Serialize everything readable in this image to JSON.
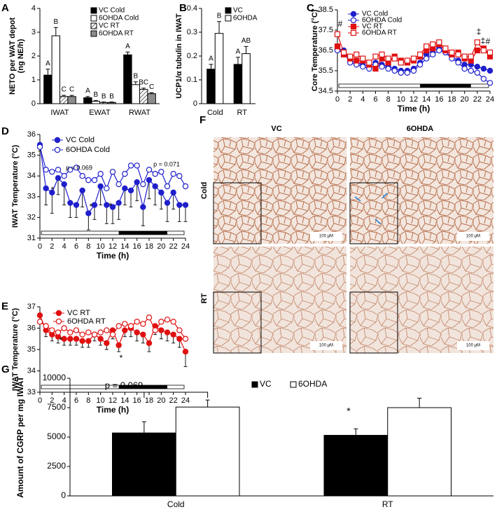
{
  "panel_labels": [
    "A",
    "B",
    "C",
    "D",
    "E",
    "F",
    "G"
  ],
  "chart_data": [
    {
      "type": "bar",
      "y_label": [
        "NETO per WAT depot",
        "(ng NE/h)"
      ],
      "categories": [
        "IWAT",
        "EWAT",
        "RWAT"
      ],
      "ylim": [
        0,
        4
      ],
      "yticks": [
        0,
        1,
        2,
        3,
        4
      ],
      "series": [
        {
          "name": "VC Cold",
          "color": "#000000",
          "values": [
            1.2,
            0.25,
            2.05
          ],
          "errors": [
            0.25,
            0.05,
            0.12
          ],
          "letters": [
            "A",
            "A",
            "A"
          ]
        },
        {
          "name": "6OHDA Cold",
          "color": "#ffffff",
          "values": [
            2.85,
            0.1,
            0.8
          ],
          "errors": [
            0.35,
            0.03,
            0.12
          ],
          "letters": [
            "B",
            "B",
            "B"
          ]
        },
        {
          "name": "VC RT",
          "color": "#ffffff",
          "pattern": "hatch",
          "values": [
            0.3,
            0.05,
            0.6
          ],
          "errors": [
            0.05,
            0.02,
            0.05
          ],
          "letters": [
            "C",
            "B",
            "BC"
          ]
        },
        {
          "name": "6OHDA RT",
          "color": "#8c8c8c",
          "values": [
            0.3,
            0.05,
            0.42
          ],
          "errors": [
            0.05,
            0.02,
            0.04
          ],
          "letters": [
            "C",
            "B",
            "C"
          ]
        }
      ]
    },
    {
      "type": "bar",
      "y_label": [
        "UCP1/α tubulin in IWAT"
      ],
      "categories": [
        "Cold",
        "RT"
      ],
      "ylim": [
        0,
        0.4
      ],
      "yticks": [
        0,
        0.1,
        0.2,
        0.3,
        0.4
      ],
      "series": [
        {
          "name": "VC",
          "color": "#000000",
          "values": [
            0.145,
            0.165
          ],
          "errors": [
            0.02,
            0.03
          ],
          "letters": [
            "A",
            "A"
          ]
        },
        {
          "name": "6OHDA",
          "color": "#ffffff",
          "values": [
            0.295,
            0.21
          ],
          "errors": [
            0.05,
            0.03
          ],
          "letters": [
            "B",
            "AB"
          ]
        }
      ]
    },
    {
      "type": "line",
      "y_label": [
        "Core Temperature (°C)"
      ],
      "x_label": "Time (h)",
      "x": [
        0,
        1,
        2,
        3,
        4,
        5,
        6,
        7,
        8,
        9,
        10,
        11,
        12,
        13,
        14,
        15,
        16,
        17,
        18,
        19,
        20,
        21,
        22,
        23,
        24
      ],
      "xlim": [
        0,
        24
      ],
      "xticks": [
        0,
        2,
        4,
        6,
        8,
        10,
        12,
        14,
        16,
        18,
        20,
        22,
        24
      ],
      "ylim": [
        34.5,
        38.5
      ],
      "yticks": [
        34.5,
        35.5,
        36.5,
        37.5,
        38.5
      ],
      "dark_phase": [
        13,
        21
      ],
      "annotations": [
        "#",
        "‡",
        "‡",
        "#"
      ],
      "series": [
        {
          "name": "VC Cold",
          "color": "#1f1fcc",
          "marker": "circle",
          "filled": true,
          "values": [
            36.6,
            36.5,
            36.0,
            35.9,
            35.8,
            35.7,
            35.9,
            35.8,
            35.7,
            35.6,
            35.5,
            35.5,
            35.6,
            35.9,
            36.3,
            36.5,
            36.6,
            36.4,
            36.2,
            36.0,
            35.8,
            35.8,
            35.7,
            35.6,
            35.5
          ]
        },
        {
          "name": "6OHDA Cold",
          "color": "#1f1fcc",
          "marker": "circle",
          "filled": false,
          "values": [
            36.5,
            36.4,
            35.9,
            35.8,
            35.7,
            35.6,
            35.8,
            35.7,
            35.6,
            35.5,
            35.4,
            35.4,
            35.5,
            35.8,
            36.1,
            36.3,
            36.5,
            36.4,
            36.1,
            35.9,
            35.6,
            35.5,
            35.4,
            35.1,
            34.9
          ]
        },
        {
          "name": "VC RT",
          "color": "#e01010",
          "marker": "square",
          "filled": true,
          "values": [
            36.7,
            36.3,
            36.1,
            36.0,
            36.0,
            35.8,
            35.6,
            36.1,
            35.9,
            36.2,
            36.0,
            35.9,
            36.0,
            36.2,
            36.5,
            36.6,
            36.8,
            36.5,
            36.3,
            36.4,
            36.1,
            36.0,
            36.5,
            36.6,
            36.2
          ]
        },
        {
          "name": "6OHDA RT",
          "color": "#e01010",
          "marker": "square",
          "filled": false,
          "values": [
            37.3,
            36.4,
            36.2,
            36.3,
            36.1,
            35.9,
            36.2,
            36.3,
            36.1,
            36.1,
            35.9,
            36.0,
            36.1,
            36.3,
            36.7,
            36.8,
            36.9,
            36.6,
            36.4,
            36.3,
            36.2,
            36.2,
            36.9,
            36.5,
            36.4
          ]
        }
      ]
    },
    {
      "type": "line",
      "y_label": [
        "IWAT Temperature (°C)"
      ],
      "x_label": "Time (h)",
      "x": [
        0,
        1,
        2,
        3,
        4,
        5,
        6,
        7,
        8,
        9,
        10,
        11,
        12,
        13,
        14,
        15,
        16,
        17,
        18,
        19,
        20,
        21,
        22,
        23,
        24
      ],
      "xlim": [
        0,
        24
      ],
      "xticks": [
        0,
        2,
        4,
        6,
        8,
        10,
        12,
        14,
        16,
        18,
        20,
        22,
        24
      ],
      "ylim": [
        31,
        36
      ],
      "yticks": [
        31,
        32,
        33,
        34,
        35,
        36
      ],
      "dark_phase": [
        13,
        21
      ],
      "annotations": [
        "p = 0.069",
        "p = 0.071",
        "*",
        "*",
        "*"
      ],
      "series": [
        {
          "name": "VC Cold",
          "color": "#1f1fcc",
          "marker": "circle",
          "filled": true,
          "values": [
            35.5,
            33.4,
            33.2,
            33.9,
            33.6,
            32.7,
            32.6,
            33.3,
            32.2,
            32.6,
            33.5,
            32.6,
            32.5,
            32.7,
            33.4,
            33.3,
            33.7,
            32.5,
            33.8,
            33.5,
            33.2,
            32.7,
            33.2,
            32.6,
            32.6
          ],
          "errors": [
            0.3,
            0.8,
            1.0,
            0.8,
            1.0,
            0.7,
            0.6,
            0.8,
            0.8,
            0.7,
            0.9,
            0.9,
            0.8,
            0.8,
            0.8,
            0.8,
            0.9,
            0.9,
            0.9,
            0.9,
            0.8,
            0.9,
            0.8,
            0.8,
            0.8
          ]
        },
        {
          "name": "6OHDA Cold",
          "color": "#1f1fcc",
          "marker": "circle",
          "filled": false,
          "values": [
            35.4,
            34.3,
            34.2,
            34.3,
            34.0,
            34.3,
            34.4,
            34.0,
            33.8,
            33.8,
            34.1,
            33.4,
            34.2,
            33.6,
            34.1,
            34.5,
            34.5,
            33.6,
            34.3,
            34.1,
            34.2,
            33.5,
            34.1,
            34.0,
            33.5
          ]
        }
      ]
    },
    {
      "type": "line",
      "y_label": [
        "IWAT Temperature (°C)"
      ],
      "x_label": "Time (h)",
      "x": [
        0,
        1,
        2,
        3,
        4,
        5,
        6,
        7,
        8,
        9,
        10,
        11,
        12,
        13,
        14,
        15,
        16,
        17,
        18,
        19,
        20,
        21,
        22,
        23,
        24
      ],
      "xlim": [
        0,
        24
      ],
      "xticks": [
        0,
        2,
        4,
        6,
        8,
        10,
        12,
        14,
        16,
        18,
        20,
        22,
        24
      ],
      "ylim": [
        33,
        37
      ],
      "yticks": [
        33,
        34,
        35,
        36,
        37
      ],
      "dark_phase": [
        13,
        21
      ],
      "annotations": [
        "*",
        "*"
      ],
      "series": [
        {
          "name": "VC RT",
          "color": "#e01010",
          "marker": "circle",
          "filled": true,
          "values": [
            36.6,
            35.9,
            35.7,
            35.6,
            35.5,
            35.5,
            35.5,
            35.4,
            35.4,
            35.7,
            35.5,
            35.3,
            35.9,
            35.2,
            35.9,
            36.0,
            35.8,
            35.7,
            35.3,
            36.1,
            35.9,
            35.8,
            35.7,
            35.5,
            34.9
          ],
          "errors": [
            0.2,
            0.3,
            0.3,
            0.3,
            0.3,
            0.3,
            0.3,
            0.3,
            0.3,
            0.3,
            0.3,
            0.3,
            0.4,
            0.3,
            0.3,
            0.4,
            0.4,
            0.4,
            0.4,
            0.4,
            0.4,
            0.4,
            0.4,
            0.4,
            0.7
          ]
        },
        {
          "name": "6OHDA RT",
          "color": "#e01010",
          "marker": "circle",
          "filled": false,
          "values": [
            36.3,
            36.1,
            35.9,
            35.8,
            36.0,
            35.8,
            35.9,
            35.7,
            35.8,
            35.7,
            35.8,
            35.9,
            35.7,
            36.1,
            36.2,
            36.1,
            36.3,
            36.2,
            36.5,
            35.9,
            36.3,
            36.4,
            36.3,
            35.9,
            35.5
          ]
        }
      ]
    },
    {
      "type": "bar",
      "y_label": [
        "Amount of CGRP per mg IWAT"
      ],
      "categories": [
        "Cold",
        "RT"
      ],
      "ylim": [
        0,
        10000
      ],
      "yticks": [
        0,
        2500,
        5000,
        7500,
        10000
      ],
      "annotations": [
        "p = 0.069",
        "*"
      ],
      "series": [
        {
          "name": "VC",
          "color": "#000000",
          "values": [
            5350,
            5150
          ],
          "errors": [
            950,
            550
          ]
        },
        {
          "name": "6OHDA",
          "color": "#ffffff",
          "values": [
            7550,
            7500
          ],
          "errors": [
            600,
            800
          ]
        }
      ]
    }
  ],
  "micrographs": {
    "columns": [
      "VC",
      "6OHDA"
    ],
    "rows": [
      "Cold",
      "RT"
    ],
    "scale_label": "100 μM"
  }
}
